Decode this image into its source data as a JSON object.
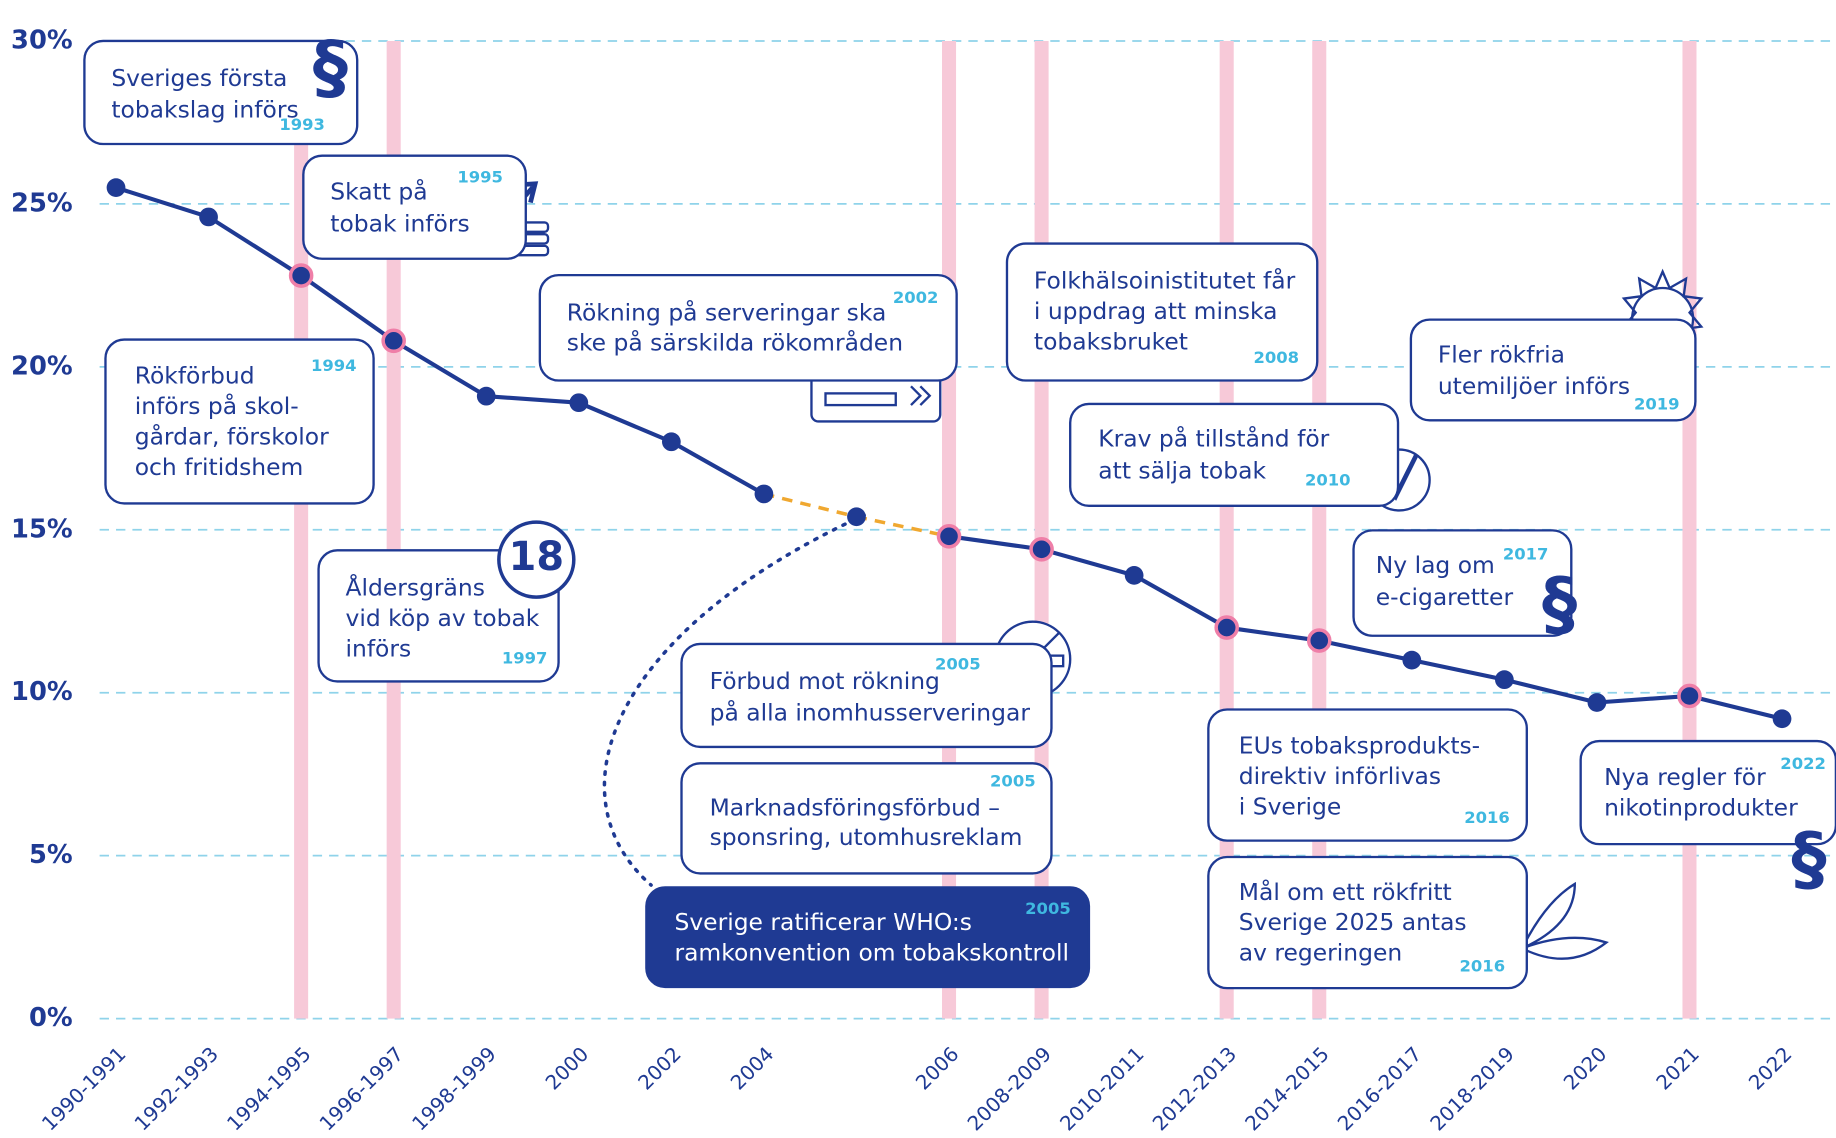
{
  "chart_data": {
    "type": "line",
    "categories": [
      "1990-1991",
      "1992-1993",
      "1994-1995",
      "1996-1997",
      "1998-1999",
      "2000",
      "2002",
      "2004",
      null,
      "2006",
      "2008-2009",
      "2010-2011",
      "2012-2013",
      "2014-2015",
      "2016-2017",
      "2018-2019",
      "2020",
      "2021",
      "2022"
    ],
    "values": [
      25.5,
      24.6,
      22.8,
      20.8,
      19.1,
      18.9,
      17.7,
      16.1,
      15.4,
      14.8,
      14.4,
      13.6,
      12.0,
      11.6,
      11.0,
      10.4,
      9.7,
      9.9,
      9.2
    ],
    "highlighted": [
      false,
      false,
      true,
      true,
      false,
      false,
      false,
      false,
      false,
      true,
      true,
      false,
      true,
      true,
      false,
      false,
      false,
      true,
      false
    ],
    "dashed_from_previous": [
      false,
      false,
      false,
      false,
      false,
      false,
      false,
      false,
      true,
      true,
      false,
      false,
      false,
      false,
      false,
      false,
      false,
      false,
      false
    ],
    "color": "#1f3a93",
    "dashed_color": "#f0a830",
    "highlight_color": "#f7c9d8",
    "ylim": [
      0,
      30
    ],
    "yticks": [
      {
        "value": 0,
        "label": "0%"
      },
      {
        "value": 5,
        "label": "5%"
      },
      {
        "value": 10,
        "label": "10%"
      },
      {
        "value": 15,
        "label": "15%"
      },
      {
        "value": 20,
        "label": "20%"
      },
      {
        "value": 25,
        "label": "25%"
      },
      {
        "value": 30,
        "label": "30%"
      }
    ],
    "grid": true,
    "annotations": [
      {
        "lines": [
          "Sveriges första",
          "tobakslag införs"
        ],
        "year": "1993",
        "icon": "§"
      },
      {
        "lines": [
          "Skatt på",
          "tobak införs"
        ],
        "year": "1995"
      },
      {
        "lines": [
          "Rökförbud",
          "införs på skol-",
          "gårdar, förskolor",
          "och fritidshem"
        ],
        "year": "1994"
      },
      {
        "lines": [
          "Åldersgräns",
          "vid köp av tobak",
          "införs"
        ],
        "year": "1997",
        "icon": "18"
      },
      {
        "lines": [
          "Rökning på serveringar ska",
          "ske på särskilda rökområden"
        ],
        "year": "2002"
      },
      {
        "lines": [
          "Förbud mot rökning",
          "på alla inomhusserveringar"
        ],
        "year": "2005"
      },
      {
        "lines": [
          "Marknadsföringsförbud –",
          "sponsring, utomhusreklam"
        ],
        "year": "2005"
      },
      {
        "lines": [
          "Sverige ratificerar WHO:s",
          "ramkonvention om tobakskontroll"
        ],
        "year": "2005"
      },
      {
        "lines": [
          "Folkhälsoinistitutet får",
          "i uppdrag att minska",
          "tobaksbruket"
        ],
        "year": "2008"
      },
      {
        "lines": [
          "Krav på tillstånd för",
          "att sälja tobak"
        ],
        "year": "2010"
      },
      {
        "lines": [
          "Fler rökfria",
          "utemiljöer införs"
        ],
        "year": "2019"
      },
      {
        "lines": [
          "Ny lag om",
          "e-cigaretter"
        ],
        "year": "2017",
        "icon": "§"
      },
      {
        "lines": [
          "EUs tobaksprodukts-",
          "direktiv införlivas",
          "i Sverige"
        ],
        "year": "2016"
      },
      {
        "lines": [
          "Mål om ett rökfritt",
          "Sverige 2025 antas",
          "av regeringen"
        ],
        "year": "2016"
      },
      {
        "lines": [
          "Nya regler för",
          "nikotinprodukter"
        ],
        "year": "2022",
        "icon": "§"
      }
    ]
  }
}
